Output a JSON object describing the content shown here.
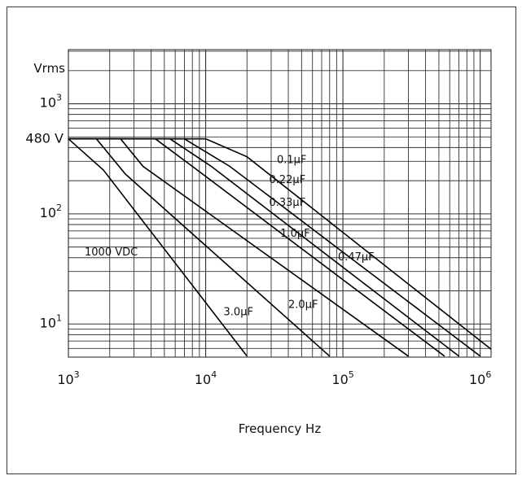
{
  "chart_data": {
    "type": "line",
    "title": "",
    "xlabel": "Frequency Hz",
    "ylabel": "Vrms",
    "x_scale": "log",
    "y_scale": "log",
    "xlim": [
      1000,
      1200000
    ],
    "ylim": [
      5,
      3100
    ],
    "grid": true,
    "x_ticks": [
      {
        "value": 1000,
        "base": "10",
        "exp": "3"
      },
      {
        "value": 10000,
        "base": "10",
        "exp": "4"
      },
      {
        "value": 100000,
        "base": "10",
        "exp": "5"
      },
      {
        "value": 1000000,
        "base": "10",
        "exp": "6"
      }
    ],
    "y_ticks": [
      {
        "value": 1000,
        "base": "10",
        "exp": "3"
      },
      {
        "value": 100,
        "base": "10",
        "exp": "2"
      },
      {
        "value": 10,
        "base": "10",
        "exp": "1"
      }
    ],
    "y_marker": {
      "value": 480,
      "label": "480 V"
    },
    "annotation": "1000 VDC",
    "series": [
      {
        "name": "0.1µF",
        "points": [
          [
            1000,
            480
          ],
          [
            10000,
            480
          ],
          [
            20000,
            330
          ],
          [
            1200000,
            5.9
          ]
        ]
      },
      {
        "name": "0.22µF",
        "points": [
          [
            1000,
            480
          ],
          [
            7000,
            480
          ],
          [
            15000,
            270
          ],
          [
            1000000,
            5.1
          ]
        ]
      },
      {
        "name": "0.33µF",
        "points": [
          [
            1000,
            480
          ],
          [
            5500,
            480
          ],
          [
            11000,
            270
          ],
          [
            700000,
            5.1
          ]
        ]
      },
      {
        "name": "0.47µF",
        "points": [
          [
            1000,
            480
          ],
          [
            4300,
            480
          ],
          [
            8000,
            270
          ],
          [
            550000,
            5.1
          ]
        ]
      },
      {
        "name": "1.0µF",
        "points": [
          [
            1000,
            480
          ],
          [
            2400,
            480
          ],
          [
            3500,
            270
          ],
          [
            300000,
            5.1
          ]
        ]
      },
      {
        "name": "2.0µF",
        "points": [
          [
            1000,
            480
          ],
          [
            1600,
            480
          ],
          [
            2600,
            230
          ],
          [
            80000,
            5.1
          ]
        ]
      },
      {
        "name": "3.0µF",
        "points": [
          [
            1000,
            480
          ],
          [
            1800,
            250
          ],
          [
            20000,
            5.1
          ]
        ]
      }
    ],
    "series_labels": [
      {
        "series": "0.1µF",
        "at": [
          33000,
          290
        ]
      },
      {
        "series": "0.22µF",
        "at": [
          29000,
          190
        ]
      },
      {
        "series": "0.33µF",
        "at": [
          29000,
          118
        ]
      },
      {
        "series": "1.0µF",
        "at": [
          35000,
          62
        ]
      },
      {
        "series": "0.47µF",
        "at": [
          92000,
          38
        ]
      },
      {
        "series": "2.0µF",
        "at": [
          40000,
          14
        ]
      },
      {
        "series": "3.0µF",
        "at": [
          13500,
          12
        ]
      }
    ]
  }
}
